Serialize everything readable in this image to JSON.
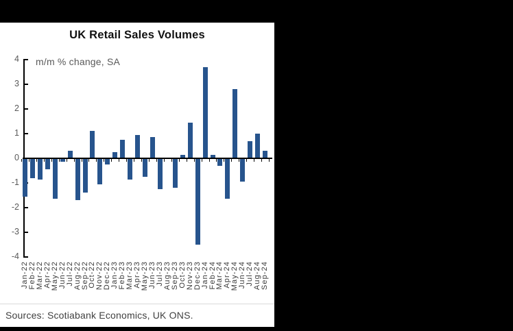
{
  "panel": {
    "title": "UK Retail Sales Volumes",
    "subtitle": "m/m % change, SA",
    "footer": "Sources: Scotiabank Economics, UK ONS."
  },
  "chart_data": {
    "type": "bar",
    "title": "UK Retail Sales Volumes",
    "subtitle": "m/m % change, SA",
    "source_note": "Sources: Scotiabank Economics, UK ONS.",
    "categories": [
      "Jan-22",
      "Feb-22",
      "Mar-22",
      "Apr-22",
      "May-22",
      "Jun-22",
      "Jul-22",
      "Aug-22",
      "Sep-22",
      "Oct-22",
      "Nov-22",
      "Dec-22",
      "Jan-23",
      "Feb-23",
      "Mar-23",
      "Apr-23",
      "May-23",
      "Jun-23",
      "Jul-23",
      "Aug-23",
      "Sep-23",
      "Oct-23",
      "Nov-23",
      "Dec-23",
      "Jan-24",
      "Feb-24",
      "Mar-24",
      "Apr-24",
      "May-24",
      "Jun-24",
      "Jul-24",
      "Aug-24",
      "Sep-24"
    ],
    "values": [
      -1.55,
      -0.8,
      -0.85,
      -0.45,
      -1.65,
      -0.15,
      0.3,
      -1.7,
      -1.4,
      1.1,
      -1.05,
      -0.25,
      0.25,
      0.75,
      -0.85,
      0.95,
      -0.75,
      0.85,
      -1.25,
      0.0,
      -1.2,
      0.15,
      1.45,
      -3.5,
      3.7,
      0.15,
      -0.3,
      -1.65,
      2.8,
      -0.95,
      0.7,
      1.0,
      0.3
    ],
    "ylim": [
      -4,
      4
    ],
    "ytick_step": 1,
    "ytick_labels": [
      "4",
      "3",
      "2",
      "1",
      "0",
      "-1",
      "-2",
      "-3",
      "-4"
    ],
    "grid": false,
    "legend": "none",
    "bar_color": "#27548D",
    "axis_color": "#000000",
    "label_color": "#3a3a3a",
    "ylabel_color": "#595959",
    "background_color": "#ffffff",
    "frame_color": "#000000"
  }
}
